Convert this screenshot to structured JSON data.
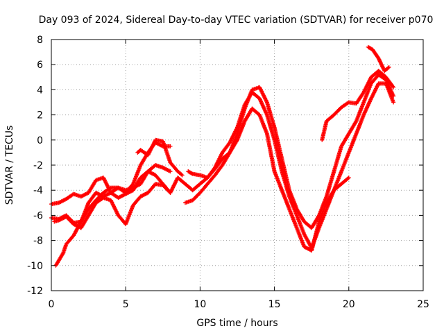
{
  "chart_data": {
    "type": "scatter",
    "title": "Day 093 of 2024, Sidereal Day-to-day VTEC variation (SDTVAR) for receiver p070",
    "xlabel": "GPS time / hours",
    "ylabel": "SDTVAR / TECUs",
    "xlim": [
      0,
      25
    ],
    "ylim": [
      -12,
      8
    ],
    "xticks": [
      "0",
      "5",
      "10",
      "15",
      "20",
      "25"
    ],
    "yticks": [
      "-12",
      "-10",
      "-8",
      "-6",
      "-4",
      "-2",
      "0",
      "2",
      "4",
      "6",
      "8"
    ],
    "grid": true,
    "marker": "+",
    "color": "#ff0000",
    "series": [
      {
        "x": [
          0.0,
          0.5,
          1.0,
          1.5,
          2.0,
          2.5,
          3.0,
          3.5,
          4.0,
          4.5,
          5.0,
          5.5,
          6.0,
          6.5,
          7.0,
          7.5,
          8.0,
          8.5,
          9.0,
          9.5,
          10.0,
          10.5,
          11.0,
          11.5,
          12.0,
          12.5,
          13.0,
          13.5,
          14.0,
          14.5,
          15.0,
          15.5,
          16.0,
          16.5,
          17.0,
          17.5,
          18.0,
          18.5,
          19.0,
          19.5,
          20.0,
          20.5,
          21.0,
          21.5,
          22.0,
          22.5,
          23.0
        ],
        "y": [
          -6.2,
          -6.3,
          -6.0,
          -6.6,
          -6.5,
          -5.0,
          -4.2,
          -4.5,
          -4.2,
          -4.6,
          -4.3,
          -4.0,
          -3.0,
          -2.5,
          -2.8,
          -3.5,
          -4.2,
          -3.0,
          -3.5,
          -4.0,
          -3.5,
          -3.0,
          -2.2,
          -1.0,
          -0.2,
          1.0,
          2.8,
          3.8,
          3.3,
          2.0,
          0.0,
          -2.5,
          -4.5,
          -6.0,
          -7.5,
          -8.6,
          -7.0,
          -5.5,
          -4.0,
          -2.5,
          -1.0,
          0.5,
          2.0,
          3.3,
          4.5,
          4.5,
          3.0
        ]
      },
      {
        "x": [
          0.0,
          0.5,
          1.0,
          1.5,
          2.0,
          2.5,
          3.0,
          3.5,
          4.0,
          4.5,
          5.0,
          5.5,
          6.0,
          6.5,
          7.0,
          7.5,
          8.0
        ],
        "y": [
          -5.1,
          -5.0,
          -4.7,
          -4.3,
          -4.5,
          -4.2,
          -3.2,
          -3.0,
          -4.2,
          -3.8,
          -4.0,
          -3.8,
          -3.5,
          -2.5,
          -2.0,
          -2.2,
          -2.5
        ]
      },
      {
        "x": [
          0.2,
          0.5,
          1.0,
          1.5,
          2.0,
          2.5,
          3.0,
          3.5,
          4.0,
          4.5,
          5.0,
          5.5,
          6.0,
          6.5,
          7.0,
          7.5,
          8.0
        ],
        "y": [
          -6.5,
          -6.4,
          -6.1,
          -6.7,
          -7.0,
          -6.0,
          -5.0,
          -4.6,
          -4.8,
          -6.0,
          -6.7,
          -5.2,
          -4.5,
          -4.2,
          -3.5,
          -3.6,
          -4.2
        ]
      },
      {
        "x": [
          0.3,
          0.5,
          0.8,
          1.0,
          1.5,
          2.0,
          2.5,
          3.0,
          3.5,
          4.0,
          4.5,
          5.0,
          5.5,
          6.0,
          6.5,
          7.0,
          7.5,
          8.0
        ],
        "y": [
          -10.0,
          -9.6,
          -9.0,
          -8.3,
          -7.6,
          -6.5,
          -5.5,
          -4.8,
          -4.2,
          -3.8,
          -3.8,
          -4.2,
          -3.5,
          -2.0,
          -1.0,
          -0.2,
          -0.5,
          -0.5
        ]
      },
      {
        "x": [
          5.8,
          6.0,
          6.5,
          7.0,
          7.5,
          8.0,
          8.5,
          8.8
        ],
        "y": [
          -1.0,
          -0.8,
          -1.2,
          0.0,
          -0.1,
          -1.8,
          -2.5,
          -2.8
        ]
      },
      {
        "x": [
          9.2,
          9.5,
          10.0,
          10.5,
          11.0,
          11.5,
          12.0,
          12.5,
          13.0,
          13.5,
          14.0,
          14.5,
          15.0,
          15.5,
          16.0,
          16.5,
          17.0,
          17.5,
          18.0,
          18.5,
          19.0,
          19.5,
          20.0
        ],
        "y": [
          -2.5,
          -2.7,
          -2.8,
          -3.0,
          -2.3,
          -1.5,
          -1.0,
          0.0,
          1.5,
          2.5,
          2.0,
          0.5,
          -2.5,
          -4.0,
          -5.5,
          -7.0,
          -8.5,
          -8.8,
          -6.5,
          -5.0,
          -4.0,
          -3.5,
          -3.0
        ]
      },
      {
        "x": [
          9.0,
          9.5,
          10.0,
          10.5,
          11.0,
          11.5,
          12.0,
          12.5,
          13.0,
          13.5,
          14.0,
          14.5,
          15.0,
          15.5,
          16.0,
          16.5,
          17.0,
          17.5,
          18.0,
          18.5,
          19.0,
          19.5,
          20.0,
          20.5,
          21.0,
          21.5,
          22.0,
          22.5,
          23.0
        ],
        "y": [
          -5.0,
          -4.8,
          -4.2,
          -3.5,
          -2.8,
          -2.0,
          -1.0,
          0.5,
          2.5,
          4.0,
          4.2,
          3.0,
          1.0,
          -1.5,
          -4.0,
          -5.5,
          -6.5,
          -7.0,
          -6.0,
          -4.5,
          -2.5,
          -0.5,
          0.5,
          1.5,
          3.0,
          4.5,
          5.2,
          4.8,
          3.5
        ]
      },
      {
        "x": [
          18.2,
          18.5,
          19.0,
          19.5,
          20.0,
          20.5,
          21.0,
          21.5,
          22.0,
          22.5,
          23.0
        ],
        "y": [
          0.0,
          1.5,
          2.0,
          2.6,
          3.0,
          2.9,
          3.8,
          5.0,
          5.5,
          5.0,
          4.2
        ]
      },
      {
        "x": [
          21.3,
          21.6,
          22.0,
          22.4,
          22.7
        ],
        "y": [
          7.4,
          7.2,
          6.5,
          5.5,
          5.8
        ]
      }
    ]
  }
}
